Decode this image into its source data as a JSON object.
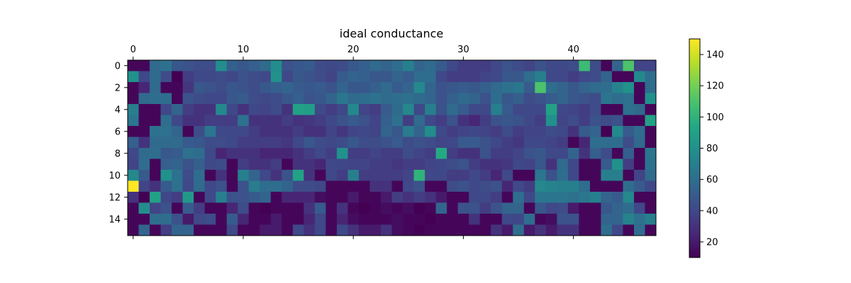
{
  "chart_data": {
    "type": "heatmap",
    "title": "ideal conductance",
    "colormap": "viridis",
    "n_rows": 16,
    "n_cols": 48,
    "x_tick_values": [
      0,
      10,
      20,
      30,
      40
    ],
    "x_tick_labels": [
      "0",
      "10",
      "20",
      "30",
      "40"
    ],
    "x_ticks_position": "top",
    "y_tick_values": [
      0,
      2,
      4,
      6,
      8,
      10,
      12,
      14
    ],
    "y_tick_labels": [
      "0",
      "2",
      "4",
      "6",
      "8",
      "10",
      "12",
      "14"
    ],
    "colorbar": {
      "vmin": 10,
      "vmax": 150,
      "ticks": [
        20,
        40,
        60,
        80,
        100,
        120,
        140
      ],
      "tick_labels": [
        "20",
        "40",
        "60",
        "80",
        "100",
        "120",
        "140"
      ]
    },
    "values": [
      [
        12,
        12,
        58,
        62,
        48,
        45,
        42,
        42,
        78,
        52,
        48,
        52,
        58,
        78,
        45,
        48,
        50,
        42,
        40,
        42,
        48,
        52,
        58,
        55,
        60,
        70,
        55,
        58,
        50,
        40,
        35,
        35,
        35,
        40,
        45,
        42,
        38,
        45,
        40,
        40,
        42,
        105,
        42,
        12,
        55,
        110,
        38,
        38
      ],
      [
        80,
        40,
        58,
        42,
        10,
        35,
        40,
        40,
        42,
        40,
        45,
        42,
        40,
        80,
        40,
        48,
        45,
        42,
        38,
        50,
        55,
        52,
        48,
        48,
        55,
        50,
        60,
        60,
        40,
        35,
        35,
        35,
        38,
        40,
        48,
        48,
        60,
        70,
        40,
        40,
        35,
        40,
        42,
        55,
        12,
        12,
        75,
        60
      ],
      [
        12,
        25,
        58,
        12,
        12,
        32,
        48,
        45,
        42,
        48,
        45,
        42,
        48,
        52,
        55,
        50,
        48,
        50,
        45,
        55,
        48,
        48,
        52,
        58,
        50,
        55,
        75,
        55,
        45,
        48,
        50,
        48,
        52,
        58,
        62,
        65,
        50,
        110,
        60,
        55,
        48,
        55,
        58,
        60,
        72,
        80,
        12,
        60
      ],
      [
        12,
        58,
        60,
        60,
        12,
        45,
        42,
        40,
        40,
        48,
        50,
        42,
        40,
        42,
        48,
        52,
        45,
        48,
        55,
        65,
        58,
        60,
        62,
        58,
        60,
        62,
        58,
        55,
        45,
        52,
        58,
        55,
        45,
        60,
        48,
        52,
        42,
        45,
        50,
        55,
        48,
        45,
        42,
        65,
        60,
        62,
        12,
        80
      ],
      [
        70,
        12,
        12,
        40,
        55,
        35,
        30,
        30,
        75,
        40,
        30,
        40,
        38,
        42,
        30,
        90,
        88,
        40,
        35,
        40,
        75,
        38,
        35,
        50,
        58,
        75,
        40,
        70,
        45,
        58,
        50,
        40,
        40,
        70,
        50,
        40,
        40,
        40,
        90,
        40,
        38,
        35,
        42,
        12,
        12,
        62,
        58,
        12
      ],
      [
        65,
        12,
        12,
        60,
        40,
        30,
        30,
        35,
        35,
        35,
        62,
        30,
        30,
        30,
        35,
        30,
        32,
        35,
        40,
        45,
        50,
        45,
        38,
        52,
        62,
        35,
        58,
        40,
        35,
        45,
        30,
        25,
        35,
        45,
        48,
        45,
        40,
        35,
        80,
        38,
        42,
        35,
        45,
        42,
        45,
        12,
        12,
        90
      ],
      [
        12,
        12,
        62,
        62,
        55,
        12,
        42,
        65,
        40,
        40,
        40,
        35,
        30,
        30,
        30,
        35,
        30,
        30,
        38,
        32,
        38,
        40,
        38,
        55,
        48,
        68,
        55,
        78,
        40,
        35,
        38,
        40,
        38,
        35,
        42,
        35,
        38,
        38,
        42,
        40,
        30,
        50,
        55,
        10,
        75,
        50,
        60,
        12
      ],
      [
        52,
        30,
        58,
        58,
        58,
        50,
        48,
        42,
        42,
        40,
        35,
        35,
        35,
        35,
        32,
        40,
        48,
        42,
        40,
        42,
        48,
        42,
        42,
        45,
        50,
        42,
        45,
        42,
        38,
        40,
        50,
        50,
        45,
        40,
        35,
        32,
        40,
        40,
        38,
        35,
        12,
        25,
        60,
        60,
        60,
        42,
        58,
        12
      ],
      [
        40,
        58,
        60,
        48,
        50,
        62,
        60,
        40,
        25,
        30,
        30,
        30,
        25,
        25,
        25,
        30,
        35,
        40,
        35,
        80,
        35,
        35,
        38,
        35,
        35,
        42,
        38,
        35,
        95,
        35,
        30,
        30,
        45,
        35,
        35,
        38,
        45,
        48,
        40,
        40,
        55,
        30,
        52,
        42,
        12,
        52,
        12,
        65
      ],
      [
        38,
        60,
        12,
        52,
        55,
        45,
        52,
        40,
        42,
        12,
        35,
        30,
        30,
        35,
        12,
        30,
        30,
        25,
        40,
        40,
        38,
        38,
        35,
        35,
        32,
        35,
        35,
        38,
        40,
        42,
        45,
        35,
        30,
        30,
        32,
        40,
        38,
        48,
        30,
        58,
        40,
        12,
        12,
        50,
        80,
        35,
        12,
        62
      ],
      [
        75,
        50,
        12,
        80,
        62,
        42,
        60,
        12,
        30,
        12,
        70,
        55,
        40,
        30,
        45,
        90,
        30,
        12,
        40,
        35,
        70,
        35,
        35,
        35,
        35,
        38,
        100,
        40,
        40,
        35,
        35,
        40,
        35,
        25,
        40,
        12,
        12,
        65,
        45,
        60,
        40,
        12,
        12,
        70,
        70,
        12,
        38,
        58
      ],
      [
        150,
        38,
        30,
        50,
        62,
        40,
        58,
        40,
        45,
        12,
        45,
        68,
        60,
        60,
        55,
        42,
        42,
        40,
        12,
        12,
        12,
        12,
        30,
        30,
        12,
        40,
        45,
        12,
        12,
        42,
        45,
        40,
        42,
        45,
        25,
        40,
        35,
        75,
        72,
        70,
        70,
        60,
        12,
        12,
        12,
        60,
        50,
        40
      ],
      [
        30,
        10,
        90,
        40,
        35,
        85,
        12,
        40,
        70,
        45,
        45,
        50,
        55,
        12,
        25,
        25,
        25,
        15,
        12,
        12,
        20,
        12,
        12,
        20,
        35,
        30,
        35,
        30,
        20,
        12,
        12,
        40,
        40,
        35,
        12,
        60,
        40,
        65,
        65,
        65,
        62,
        65,
        70,
        55,
        50,
        75,
        12,
        12
      ],
      [
        12,
        78,
        38,
        45,
        12,
        50,
        35,
        12,
        12,
        25,
        42,
        12,
        10,
        12,
        12,
        12,
        30,
        50,
        12,
        30,
        12,
        10,
        12,
        15,
        12,
        15,
        10,
        12,
        55,
        12,
        45,
        45,
        35,
        45,
        55,
        55,
        12,
        48,
        40,
        42,
        20,
        12,
        12,
        48,
        55,
        60,
        40,
        12
      ],
      [
        12,
        12,
        60,
        60,
        45,
        20,
        40,
        42,
        12,
        50,
        25,
        12,
        12,
        20,
        12,
        12,
        25,
        40,
        12,
        25,
        15,
        12,
        12,
        12,
        15,
        12,
        12,
        10,
        12,
        12,
        12,
        30,
        12,
        12,
        40,
        40,
        60,
        12,
        15,
        45,
        45,
        12,
        12,
        55,
        55,
        72,
        62,
        70
      ],
      [
        12,
        55,
        12,
        35,
        55,
        55,
        12,
        12,
        12,
        40,
        12,
        12,
        20,
        20,
        12,
        40,
        30,
        40,
        12,
        40,
        30,
        20,
        20,
        30,
        15,
        12,
        10,
        12,
        12,
        12,
        12,
        12,
        12,
        30,
        20,
        60,
        20,
        30,
        20,
        30,
        30,
        12,
        12,
        60,
        40,
        12,
        60,
        12
      ]
    ]
  }
}
